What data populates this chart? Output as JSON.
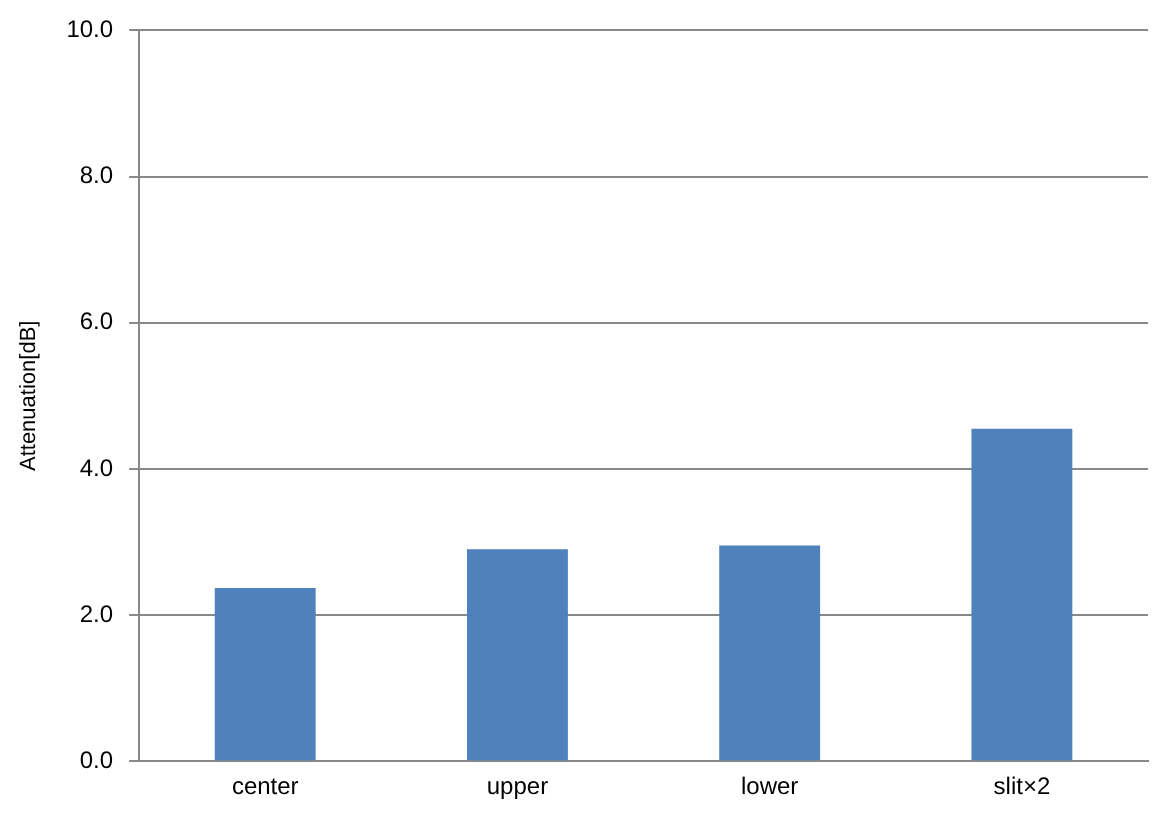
{
  "chart_data": {
    "type": "bar",
    "ylabel": "Attenuation[dB]",
    "categories": [
      "center",
      "upper",
      "lower",
      "slit×2"
    ],
    "values": [
      2.37,
      2.9,
      2.95,
      4.55
    ],
    "color": "#4f81bd",
    "ylim": [
      0,
      10
    ],
    "yticks": [
      {
        "value": 0,
        "label": "0.0"
      },
      {
        "value": 2,
        "label": "2.0"
      },
      {
        "value": 4,
        "label": "4.0"
      },
      {
        "value": 6,
        "label": "6.0"
      },
      {
        "value": 8,
        "label": "8.0"
      },
      {
        "value": 10,
        "label": "10.0"
      }
    ],
    "grid": "y"
  }
}
